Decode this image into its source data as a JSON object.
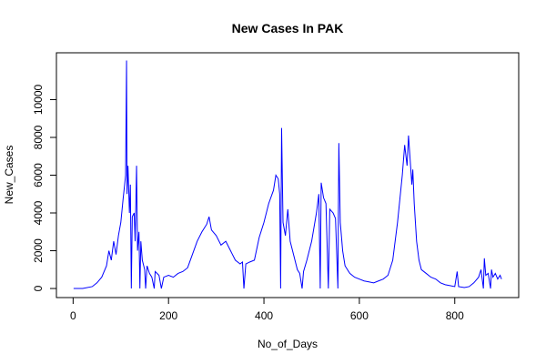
{
  "chart_data": {
    "type": "line",
    "title": "New Cases In PAK",
    "x_label": "No_of_Days",
    "y_label": "New_Cases",
    "x": [
      1,
      20,
      40,
      50,
      60,
      70,
      75,
      80,
      85,
      90,
      95,
      100,
      105,
      108,
      110,
      112,
      113,
      115,
      118,
      120,
      122,
      124,
      128,
      130,
      133,
      135,
      138,
      140,
      142,
      145,
      150,
      152,
      155,
      160,
      165,
      170,
      172,
      180,
      185,
      190,
      200,
      210,
      220,
      230,
      240,
      250,
      260,
      270,
      280,
      285,
      290,
      300,
      310,
      320,
      330,
      340,
      350,
      355,
      358,
      362,
      370,
      380,
      390,
      400,
      410,
      420,
      425,
      430,
      433,
      435,
      437,
      440,
      445,
      450,
      455,
      460,
      470,
      475,
      480,
      483,
      490,
      500,
      510,
      515,
      518,
      520,
      525,
      530,
      535,
      538,
      545,
      550,
      555,
      557,
      560,
      565,
      570,
      580,
      590,
      600,
      610,
      620,
      630,
      640,
      650,
      660,
      670,
      680,
      690,
      695,
      700,
      703,
      706,
      710,
      712,
      715,
      720,
      725,
      730,
      740,
      750,
      760,
      770,
      780,
      790,
      800,
      805,
      808,
      820,
      830,
      840,
      850,
      855,
      860,
      862,
      865,
      870,
      875,
      877,
      880,
      885,
      890,
      895,
      898
    ],
    "series": [
      {
        "name": "New_Cases",
        "color": "#0000ff",
        "values": [
          0,
          0,
          100,
          300,
          600,
          1200,
          2000,
          1500,
          2500,
          1800,
          2800,
          3500,
          4800,
          5500,
          6000,
          12073,
          5000,
          6500,
          4000,
          5500,
          0,
          3800,
          4000,
          2500,
          6500,
          2000,
          3000,
          0,
          2500,
          1500,
          1000,
          0,
          1200,
          800,
          600,
          0,
          900,
          700,
          0,
          600,
          700,
          600,
          800,
          900,
          1100,
          1800,
          2500,
          3000,
          3400,
          3800,
          3100,
          2800,
          2300,
          2500,
          2000,
          1500,
          1300,
          1400,
          0,
          1300,
          1400,
          1500,
          2700,
          3500,
          4500,
          5200,
          6000,
          5800,
          5000,
          0,
          8500,
          3500,
          2800,
          4200,
          2500,
          2000,
          1000,
          800,
          0,
          900,
          1500,
          2500,
          4000,
          5000,
          0,
          5600,
          4800,
          4500,
          0,
          4200,
          4000,
          3700,
          0,
          7700,
          3500,
          2000,
          1200,
          800,
          600,
          500,
          400,
          350,
          300,
          400,
          500,
          700,
          1500,
          3500,
          6000,
          7600,
          6500,
          8100,
          7000,
          5500,
          6300,
          4500,
          2500,
          1500,
          1000,
          800,
          600,
          500,
          300,
          200,
          150,
          100,
          900,
          100,
          50,
          100,
          300,
          600,
          1000,
          0,
          1600,
          700,
          800,
          0,
          1000,
          600,
          800,
          500,
          700,
          500
        ]
      }
    ],
    "xlim": [
      -35,
      934
    ],
    "ylim": [
      -480,
      12480
    ],
    "xticks": [
      0,
      200,
      400,
      600,
      800
    ],
    "yticks": [
      0,
      2000,
      4000,
      6000,
      8000,
      10000
    ]
  }
}
